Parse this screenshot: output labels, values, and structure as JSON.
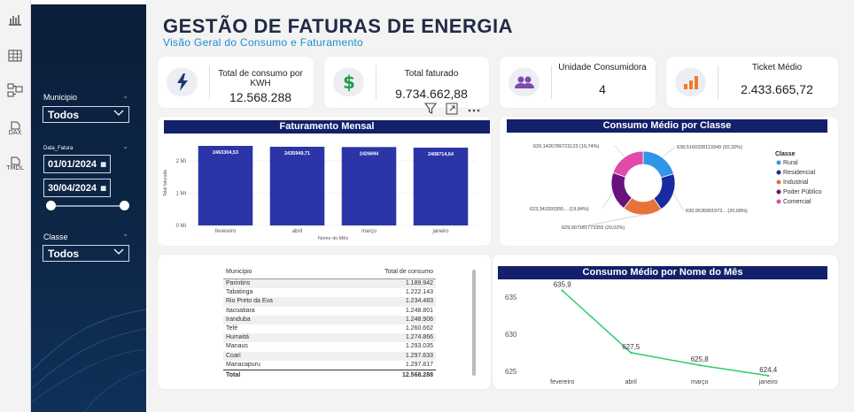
{
  "header": {
    "title": "GESTÃO DE FATURAS DE ENERGIA",
    "subtitle": "Visão Geral do Consumo e Faturamento"
  },
  "rail": {
    "icons": [
      "bar-chart-icon",
      "table-icon",
      "model-icon",
      "dax-icon",
      "tmdl-icon"
    ],
    "dax_label": "DAX",
    "tmdl_label": "TMDL"
  },
  "filters": {
    "municipio": {
      "label": "Municipio",
      "value": "Todos"
    },
    "data": {
      "label": "Data_Fatura",
      "start": "01/01/2024",
      "end": "30/04/2024"
    },
    "classe": {
      "label": "Classe",
      "value": "Todos"
    }
  },
  "kpis": [
    {
      "label": "Total de consumo por KWH",
      "value": "12.568.288",
      "icon": "lightning-icon",
      "color": "#1f3a6e"
    },
    {
      "label": "Total faturado",
      "value": "9.734.662,88",
      "icon": "dollar-icon",
      "color": "#1e9e4a"
    },
    {
      "label": "Unidade Consumidora",
      "value": "4",
      "icon": "users-icon",
      "color": "#7c4bb0"
    },
    {
      "label": "Ticket Médio",
      "value": "2.433.665,72",
      "icon": "bar-up-icon",
      "color": "#f07a2a"
    }
  ],
  "colors": {
    "bar": "#2b35a8",
    "line": "#2ecc71",
    "title_bg": "#13206a"
  },
  "chart_data": [
    {
      "type": "bar",
      "title": "Faturamento Mensal",
      "xlabel": "Nome do Mês",
      "ylabel": "Total faturado",
      "categories": [
        "fevereiro",
        "abril",
        "março",
        "janeiro"
      ],
      "values": [
        2463304.53,
        2435949.71,
        2426694,
        2408714.64
      ],
      "data_labels": [
        "2463304,53",
        "2435949,71",
        "2426694",
        "2408714,64"
      ],
      "yticks": [
        "0 Mi",
        "1 Mi",
        "2 Mi"
      ],
      "ylim": [
        0,
        2600000
      ]
    },
    {
      "type": "pie",
      "title": "Consumo Médio por Classe",
      "legend_title": "Classe",
      "legend_position": "right",
      "slices": [
        {
          "name": "Rural",
          "value": 638.5160328113349,
          "label": "638,5160328113349 (20,32%)",
          "color": "#2f96e8"
        },
        {
          "name": "Residencial",
          "value": 630.9535991973,
          "label": "630,9535991973... (20,08%)",
          "color": "#1a2aa0"
        },
        {
          "name": "Industrial",
          "value": 629.007181773355,
          "label": "629,007181773355 (20,02%)",
          "color": "#e8733a"
        },
        {
          "name": "Poder Público",
          "value": 623.343393355,
          "label": "623,343393355... (19,84%)",
          "color": "#6a1180"
        },
        {
          "name": "Comercial",
          "value": 620.1426789723123,
          "label": "620,1426789723123 (19,74%)",
          "color": "#e04aa8"
        }
      ]
    },
    {
      "type": "table",
      "columns": [
        "Municipio",
        "Total de consumo"
      ],
      "rows": [
        [
          "Parintins",
          "1.189.942"
        ],
        [
          "Tabatinga",
          "1.222.143"
        ],
        [
          "Rio Preto da Eva",
          "1.234.483"
        ],
        [
          "Itacoatiara",
          "1.248.801"
        ],
        [
          "Iranduba",
          "1.248.906"
        ],
        [
          "Tefé",
          "1.260.662"
        ],
        [
          "Humaitá",
          "1.274.866"
        ],
        [
          "Manaus",
          "1.293.035"
        ],
        [
          "Coari",
          "1.297.633"
        ],
        [
          "Manacapuru",
          "1.297.817"
        ]
      ],
      "total_label": "Total",
      "total_value": "12.568.288"
    },
    {
      "type": "line",
      "title": "Consumo Médio por Nome do Mês",
      "categories": [
        "fevereiro",
        "abril",
        "março",
        "janeiro"
      ],
      "values": [
        635.9,
        627.5,
        625.8,
        624.4
      ],
      "data_labels": [
        "635,9",
        "627,5",
        "625,8",
        "624,4"
      ],
      "yticks": [
        "625",
        "630",
        "635"
      ],
      "ylim": [
        624.5,
        636.7
      ]
    }
  ]
}
